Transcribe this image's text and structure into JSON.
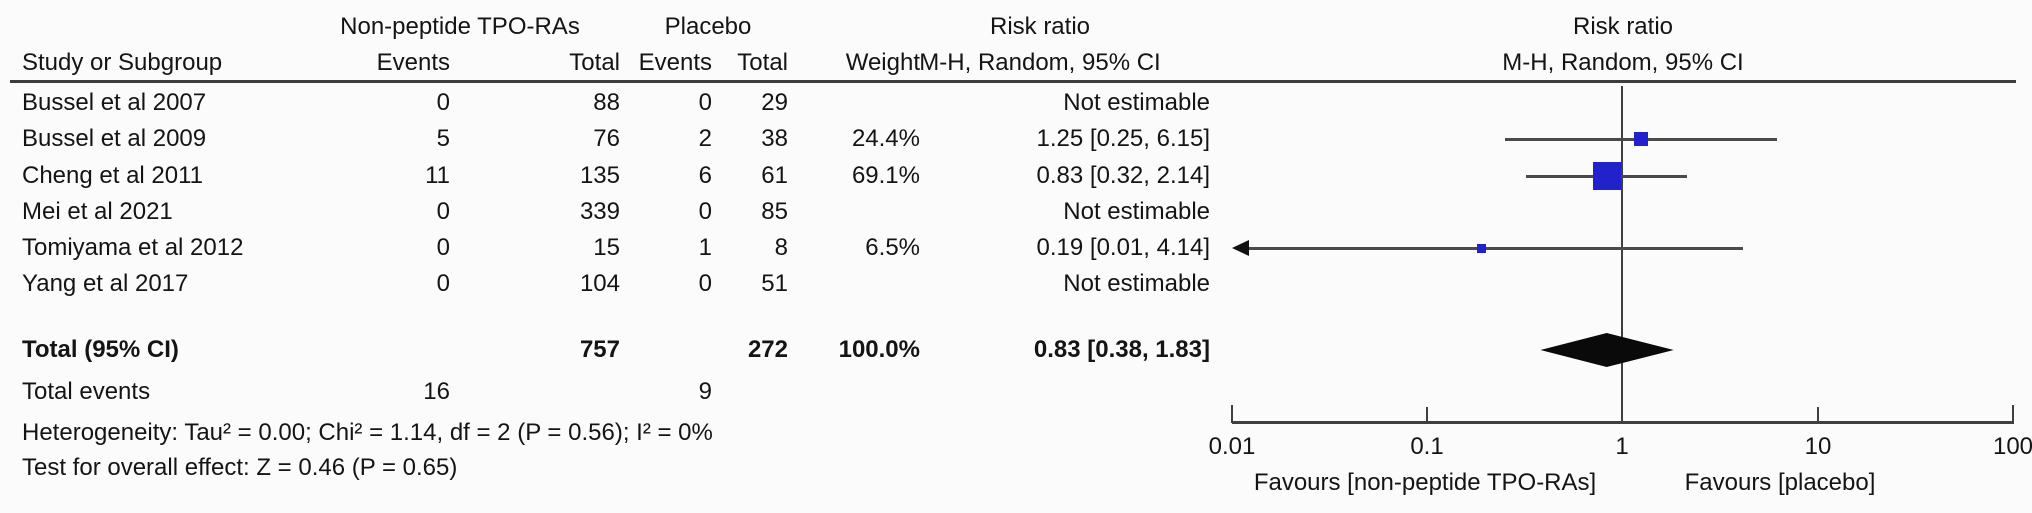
{
  "colors": {
    "marker_blue": "#2222cc",
    "ci_line": "#4a4a4a",
    "diamond": "#0a0a0a",
    "text": "#141414",
    "background": "#fbfbfb"
  },
  "header": {
    "group1": "Non-peptide TPO-RAs",
    "group2": "Placebo",
    "col_study": "Study or Subgroup",
    "col_events": "Events",
    "col_total": "Total",
    "col_events2": "Events",
    "col_total2": "Total",
    "col_weight": "Weight",
    "rr_title_text": "Risk ratio",
    "rr_method_text": "M-H, Random, 95% CI",
    "rr_title_plot": "Risk ratio",
    "rr_method_plot": "M-H, Random, 95% CI"
  },
  "chart_data": {
    "type": "forest",
    "x_scale": "log10",
    "x_min": 0.01,
    "x_max": 100,
    "x_ticks": [
      "0.01",
      "0.1",
      "1",
      "10",
      "100"
    ],
    "null_line": 1,
    "studies": [
      {
        "name": "Bussel et al 2007",
        "e1": 0,
        "n1": 88,
        "e2": 0,
        "n2": 29,
        "weight": "",
        "rr_text": "Not estimable"
      },
      {
        "name": "Bussel et al 2009",
        "e1": 5,
        "n1": 76,
        "e2": 2,
        "n2": 38,
        "weight": "24.4%",
        "rr_text": "1.25 [0.25, 6.15]",
        "rr": 1.25,
        "lo": 0.25,
        "hi": 6.15
      },
      {
        "name": "Cheng et al 2011",
        "e1": 11,
        "n1": 135,
        "e2": 6,
        "n2": 61,
        "weight": "69.1%",
        "rr_text": "0.83 [0.32, 2.14]",
        "rr": 0.83,
        "lo": 0.32,
        "hi": 2.14
      },
      {
        "name": "Mei et al 2021",
        "e1": 0,
        "n1": 339,
        "e2": 0,
        "n2": 85,
        "weight": "",
        "rr_text": "Not estimable"
      },
      {
        "name": "Tomiyama et al 2012",
        "e1": 0,
        "n1": 15,
        "e2": 1,
        "n2": 8,
        "weight": "6.5%",
        "rr_text": "0.19 [0.01, 4.14]",
        "rr": 0.19,
        "lo": 0.01,
        "hi": 4.14,
        "lo_arrow": true
      },
      {
        "name": "Yang et al 2017",
        "e1": 0,
        "n1": 104,
        "e2": 0,
        "n2": 51,
        "weight": "",
        "rr_text": "Not estimable"
      }
    ],
    "total": {
      "label": "Total (95% CI)",
      "n1": 757,
      "n2": 272,
      "weight": "100.0%",
      "rr_text": "0.83 [0.38, 1.83]",
      "rr": 0.83,
      "lo": 0.38,
      "hi": 1.83
    },
    "total_events": {
      "label": "Total events",
      "v1": 16,
      "v2": 9
    },
    "heterogeneity": "Heterogeneity: Tau² = 0.00; Chi² = 1.14, df = 2 (P = 0.56); I² = 0%",
    "overall_effect": "Test for overall effect: Z = 0.46 (P = 0.65)",
    "favours_left": "Favours [non-peptide TPO-RAs]",
    "favours_right": "Favours [placebo]"
  }
}
